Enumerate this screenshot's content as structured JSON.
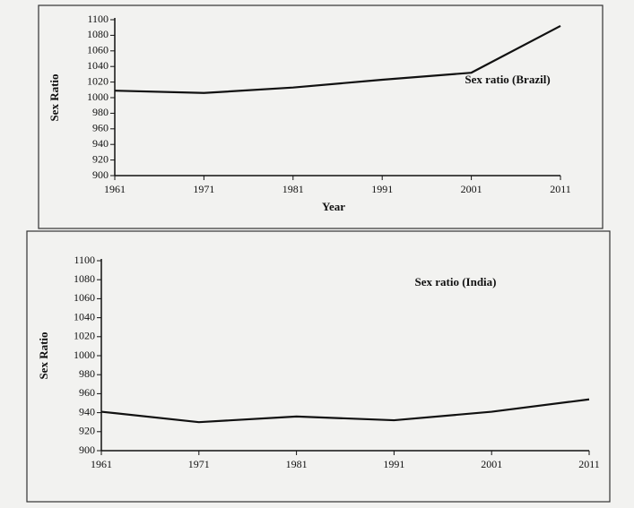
{
  "chart_data": [
    {
      "type": "line",
      "y_label": "Sex Ratio",
      "x_label": "Year",
      "x": [
        1961,
        1971,
        1981,
        1991,
        2001,
        2011
      ],
      "series": [
        {
          "name": "Sex ratio (Brazil)",
          "color": "#111111",
          "values": [
            1009,
            1006,
            1013,
            1023,
            1032,
            1092
          ]
        }
      ],
      "xlim": [
        1961,
        2011
      ],
      "xticks": [
        1961,
        1971,
        1981,
        1991,
        2001,
        2011
      ],
      "ylim": [
        900,
        1100
      ],
      "yticks": [
        900,
        920,
        940,
        960,
        980,
        1000,
        1020,
        1040,
        1060,
        1080,
        1100
      ]
    },
    {
      "type": "line",
      "y_label": "Sex Ratio",
      "x": [
        1961,
        1971,
        1981,
        1991,
        2001,
        2011
      ],
      "series": [
        {
          "name": "Sex ratio (India)",
          "color": "#111111",
          "values": [
            941,
            930,
            936,
            932,
            941,
            954
          ]
        }
      ],
      "xlim": [
        1961,
        2011
      ],
      "xticks": [
        1961,
        1971,
        1981,
        1991,
        2001,
        2011
      ],
      "ylim": [
        900,
        1100
      ],
      "yticks": [
        900,
        920,
        940,
        960,
        980,
        1000,
        1020,
        1040,
        1060,
        1080,
        1100
      ]
    }
  ]
}
